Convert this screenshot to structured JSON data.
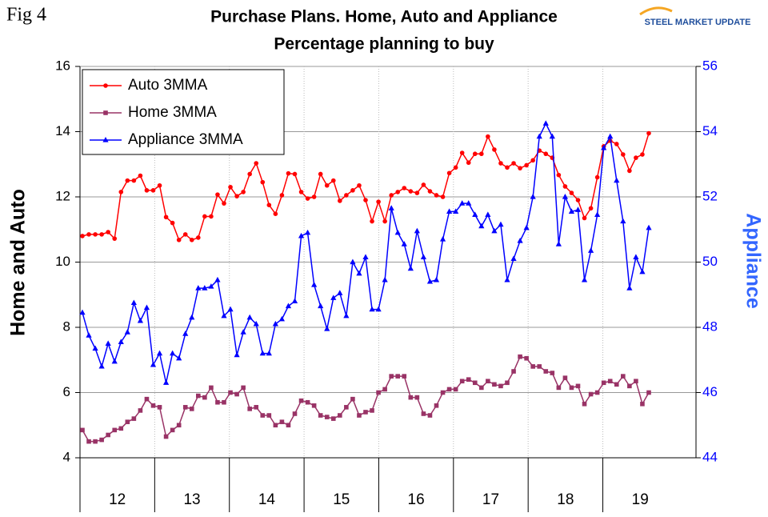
{
  "fig_label": "Fig 4",
  "logo": "STEEL MARKET UPDATE",
  "chart_data": {
    "type": "line",
    "title": "Purchase Plans. Home, Auto and Appliance",
    "subtitle": "Percentage planning to buy",
    "ylabel": "Home and Auto",
    "y2label": "Appliance",
    "year_labels": [
      "12",
      "13",
      "14",
      "15",
      "16",
      "17",
      "18",
      "19"
    ],
    "ylim": [
      4,
      16
    ],
    "yticks": [
      4,
      6,
      8,
      10,
      12,
      14,
      16
    ],
    "y2lim": [
      44,
      56
    ],
    "y2ticks": [
      44,
      46,
      48,
      50,
      52,
      54,
      56
    ],
    "grid": true,
    "legend": "upper left",
    "series": [
      {
        "name": "Auto 3MMA",
        "color": "#ff0000",
        "marker": "circle",
        "values": [
          10.8,
          10.85,
          10.85,
          10.85,
          10.92,
          10.72,
          12.15,
          12.5,
          12.5,
          12.65,
          12.2,
          12.2,
          12.35,
          11.38,
          11.2,
          10.68,
          10.85,
          10.68,
          10.75,
          11.4,
          11.4,
          12.07,
          11.8,
          12.3,
          12.02,
          12.15,
          12.7,
          13.03,
          12.45,
          11.75,
          11.48,
          12.05,
          12.72,
          12.7,
          12.15,
          11.95,
          12.0,
          12.7,
          12.35,
          12.5,
          11.88,
          12.05,
          12.2,
          12.35,
          11.9,
          11.25,
          11.85,
          11.25,
          12.05,
          12.15,
          12.27,
          12.17,
          12.12,
          12.37,
          12.17,
          12.05,
          12.0,
          12.73,
          12.9,
          13.35,
          13.05,
          13.32,
          13.32,
          13.85,
          13.45,
          13.03,
          12.9,
          13.03,
          12.88,
          12.97,
          13.12,
          13.42,
          13.32,
          13.2,
          12.67,
          12.32,
          12.12,
          11.9,
          11.35,
          11.65,
          12.6,
          13.55,
          13.72,
          13.62,
          13.3,
          12.8,
          13.2,
          13.3,
          13.95
        ]
      },
      {
        "name": "Home 3MMA",
        "color": "#993366",
        "marker": "square",
        "values": [
          4.85,
          4.5,
          4.5,
          4.55,
          4.7,
          4.85,
          4.9,
          5.1,
          5.2,
          5.45,
          5.8,
          5.6,
          5.55,
          4.65,
          4.85,
          5.0,
          5.55,
          5.5,
          5.9,
          5.85,
          6.15,
          5.7,
          5.7,
          6.0,
          5.95,
          6.15,
          5.5,
          5.55,
          5.3,
          5.3,
          5.0,
          5.1,
          5.0,
          5.35,
          5.75,
          5.7,
          5.6,
          5.3,
          5.25,
          5.2,
          5.3,
          5.55,
          5.8,
          5.3,
          5.4,
          5.45,
          6.0,
          6.1,
          6.5,
          6.5,
          6.5,
          5.85,
          5.85,
          5.35,
          5.3,
          5.6,
          6.0,
          6.1,
          6.1,
          6.35,
          6.4,
          6.3,
          6.15,
          6.35,
          6.25,
          6.2,
          6.3,
          6.65,
          7.1,
          7.05,
          6.8,
          6.8,
          6.65,
          6.6,
          6.15,
          6.45,
          6.15,
          6.2,
          5.65,
          5.95,
          6.0,
          6.3,
          6.35,
          6.25,
          6.5,
          6.2,
          6.35,
          5.65,
          6.0
        ]
      },
      {
        "name": "Appliance 3MMA",
        "color": "#0000ff",
        "marker": "triangle",
        "axis": "y2",
        "values": [
          48.45,
          47.75,
          47.35,
          46.8,
          47.5,
          46.95,
          47.55,
          47.85,
          48.75,
          48.2,
          48.6,
          46.85,
          47.2,
          46.3,
          47.2,
          47.05,
          47.8,
          48.3,
          49.2,
          49.2,
          49.25,
          49.45,
          48.35,
          48.55,
          47.15,
          47.85,
          48.3,
          48.1,
          47.2,
          47.2,
          48.1,
          48.25,
          48.65,
          48.8,
          50.8,
          50.9,
          49.3,
          48.65,
          47.95,
          48.9,
          49.05,
          48.35,
          50.0,
          49.65,
          50.15,
          48.55,
          48.55,
          49.45,
          51.65,
          50.9,
          50.55,
          49.8,
          50.95,
          50.15,
          49.4,
          49.45,
          50.7,
          51.55,
          51.55,
          51.8,
          51.8,
          51.45,
          51.1,
          51.45,
          50.95,
          51.15,
          49.45,
          50.1,
          50.65,
          51.05,
          52.0,
          53.85,
          54.25,
          53.85,
          50.55,
          52.0,
          51.55,
          51.6,
          49.45,
          50.35,
          51.45,
          53.5,
          53.85,
          52.5,
          51.25,
          49.2,
          50.15,
          49.7,
          51.05
        ]
      }
    ]
  }
}
